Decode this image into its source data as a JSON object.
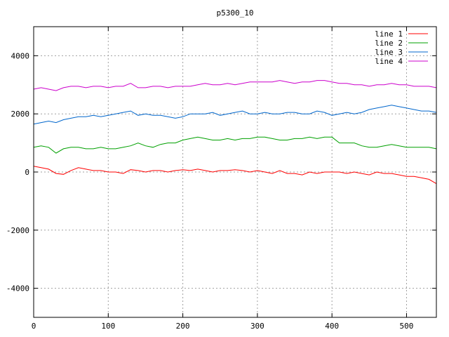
{
  "chart_data": {
    "type": "line",
    "title": "p5300_10",
    "xlabel": "",
    "ylabel": "",
    "xlim": [
      0,
      540
    ],
    "ylim": [
      -5000,
      5000
    ],
    "x_ticks": [
      0,
      100,
      200,
      300,
      400,
      500
    ],
    "y_ticks": [
      -4000,
      -2000,
      0,
      2000,
      4000
    ],
    "grid": true,
    "legend_position": "top-right",
    "series": [
      {
        "name": "line 1",
        "color": "#ff0000",
        "x": [
          0,
          10,
          20,
          30,
          40,
          50,
          60,
          70,
          80,
          90,
          100,
          110,
          120,
          130,
          140,
          150,
          160,
          170,
          180,
          190,
          200,
          210,
          220,
          230,
          240,
          250,
          260,
          270,
          280,
          290,
          300,
          310,
          320,
          330,
          340,
          350,
          360,
          370,
          380,
          390,
          400,
          410,
          420,
          430,
          440,
          450,
          460,
          470,
          480,
          490,
          500,
          510,
          520,
          530,
          540
        ],
        "values": [
          200,
          150,
          100,
          -50,
          -80,
          50,
          150,
          100,
          50,
          50,
          0,
          0,
          -50,
          80,
          50,
          0,
          50,
          50,
          0,
          50,
          80,
          50,
          100,
          50,
          0,
          50,
          50,
          80,
          50,
          0,
          50,
          0,
          -50,
          50,
          -50,
          -50,
          -100,
          0,
          -50,
          0,
          0,
          0,
          -50,
          0,
          -50,
          -100,
          0,
          -50,
          -50,
          -100,
          -150,
          -150,
          -200,
          -250,
          -400
        ]
      },
      {
        "name": "line 2",
        "color": "#00a000",
        "x": [
          0,
          10,
          20,
          30,
          40,
          50,
          60,
          70,
          80,
          90,
          100,
          110,
          120,
          130,
          140,
          150,
          160,
          170,
          180,
          190,
          200,
          210,
          220,
          230,
          240,
          250,
          260,
          270,
          280,
          290,
          300,
          310,
          320,
          330,
          340,
          350,
          360,
          370,
          380,
          390,
          400,
          410,
          420,
          430,
          440,
          450,
          460,
          470,
          480,
          490,
          500,
          510,
          520,
          530,
          540
        ],
        "values": [
          850,
          900,
          850,
          650,
          800,
          850,
          850,
          800,
          800,
          850,
          800,
          800,
          850,
          900,
          1000,
          900,
          850,
          950,
          1000,
          1000,
          1100,
          1150,
          1200,
          1150,
          1100,
          1100,
          1150,
          1100,
          1150,
          1150,
          1200,
          1200,
          1150,
          1100,
          1100,
          1150,
          1150,
          1200,
          1150,
          1200,
          1200,
          1000,
          1000,
          1000,
          900,
          850,
          850,
          900,
          950,
          900,
          850,
          850,
          850,
          850,
          800
        ]
      },
      {
        "name": "line 3",
        "color": "#0066cc",
        "x": [
          0,
          10,
          20,
          30,
          40,
          50,
          60,
          70,
          80,
          90,
          100,
          110,
          120,
          130,
          140,
          150,
          160,
          170,
          180,
          190,
          200,
          210,
          220,
          230,
          240,
          250,
          260,
          270,
          280,
          290,
          300,
          310,
          320,
          330,
          340,
          350,
          360,
          370,
          380,
          390,
          400,
          410,
          420,
          430,
          440,
          450,
          460,
          470,
          480,
          490,
          500,
          510,
          520,
          530,
          540
        ],
        "values": [
          1650,
          1700,
          1750,
          1700,
          1800,
          1850,
          1900,
          1900,
          1950,
          1900,
          1950,
          2000,
          2050,
          2100,
          1950,
          2000,
          1950,
          1950,
          1900,
          1850,
          1900,
          2000,
          2000,
          2000,
          2050,
          1950,
          2000,
          2050,
          2100,
          2000,
          2000,
          2050,
          2000,
          2000,
          2050,
          2050,
          2000,
          2000,
          2100,
          2050,
          1950,
          2000,
          2050,
          2000,
          2050,
          2150,
          2200,
          2250,
          2300,
          2250,
          2200,
          2150,
          2100,
          2100,
          2050
        ]
      },
      {
        "name": "line 4",
        "color": "#cc00cc",
        "x": [
          0,
          10,
          20,
          30,
          40,
          50,
          60,
          70,
          80,
          90,
          100,
          110,
          120,
          130,
          140,
          150,
          160,
          170,
          180,
          190,
          200,
          210,
          220,
          230,
          240,
          250,
          260,
          270,
          280,
          290,
          300,
          310,
          320,
          330,
          340,
          350,
          360,
          370,
          380,
          390,
          400,
          410,
          420,
          430,
          440,
          450,
          460,
          470,
          480,
          490,
          500,
          510,
          520,
          530,
          540
        ],
        "values": [
          2850,
          2900,
          2850,
          2800,
          2900,
          2950,
          2950,
          2900,
          2950,
          2950,
          2900,
          2950,
          2950,
          3050,
          2900,
          2900,
          2950,
          2950,
          2900,
          2950,
          2950,
          2950,
          3000,
          3050,
          3000,
          3000,
          3050,
          3000,
          3050,
          3100,
          3100,
          3100,
          3100,
          3150,
          3100,
          3050,
          3100,
          3100,
          3150,
          3150,
          3100,
          3050,
          3050,
          3000,
          3000,
          2950,
          3000,
          3000,
          3050,
          3000,
          3000,
          2950,
          2950,
          2950,
          2900
        ]
      }
    ]
  }
}
